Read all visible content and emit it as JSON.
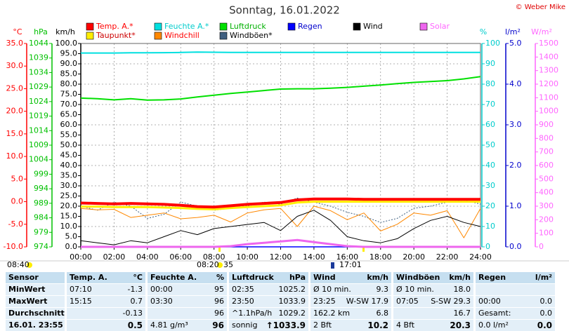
{
  "chart_data": {
    "type": "line",
    "title": "Sonntag, 16.01.2022",
    "copyright": "© Weber Mike",
    "x": [
      0,
      1,
      2,
      3,
      4,
      5,
      6,
      7,
      8,
      9,
      10,
      11,
      12,
      13,
      14,
      15,
      16,
      17,
      18,
      19,
      20,
      21,
      22,
      23,
      24
    ],
    "xlim": [
      0,
      24
    ],
    "xticks": [
      {
        "value": 0,
        "label": "00:00"
      },
      {
        "value": 2,
        "label": "02:00"
      },
      {
        "value": 4,
        "label": "04:00"
      },
      {
        "value": 6,
        "label": "06:00"
      },
      {
        "value": 8,
        "label": "08:00"
      },
      {
        "value": 10,
        "label": "10:00"
      },
      {
        "value": 12,
        "label": "12:00"
      },
      {
        "value": 14,
        "label": "14:00"
      },
      {
        "value": 16,
        "label": "16:00"
      },
      {
        "value": 18,
        "label": "18:00"
      },
      {
        "value": 20,
        "label": "20:00"
      },
      {
        "value": 22,
        "label": "22:00"
      },
      {
        "value": 24,
        "label": "24:00"
      }
    ],
    "grid": true,
    "grid_axis": 3,
    "axes": [
      {
        "title": "°C",
        "color": "#ff0000",
        "lim": [
          -10,
          35
        ],
        "ticks": [
          {
            "value": 35,
            "label": "35.0"
          },
          {
            "value": 30,
            "label": "30.0"
          },
          {
            "value": 25,
            "label": "25.0"
          },
          {
            "value": 20,
            "label": "20.0"
          },
          {
            "value": 15,
            "label": "15.0"
          },
          {
            "value": 10,
            "label": "10.0"
          },
          {
            "value": 5,
            "label": "5.0"
          },
          {
            "value": 0,
            "label": "0.0"
          },
          {
            "value": -5,
            "label": "-5.0"
          },
          {
            "value": -10,
            "label": "-10.0"
          }
        ]
      },
      {
        "title": "hPa",
        "color": "#00c000",
        "lim": [
          974,
          1044
        ],
        "ticks": [
          1044,
          1039,
          1034,
          1029,
          1024,
          1019,
          1014,
          1009,
          1004,
          999,
          994,
          989,
          984,
          979,
          974
        ]
      },
      {
        "title": "km/h",
        "color": "#000000",
        "lim": [
          0,
          100
        ],
        "ticks": [
          {
            "value": 100,
            "label": "100.0"
          },
          {
            "value": 95,
            "label": "95.0"
          },
          {
            "value": 90,
            "label": "90.0"
          },
          {
            "value": 85,
            "label": "85.0"
          },
          {
            "value": 80,
            "label": "80.0"
          },
          {
            "value": 75,
            "label": "75.0"
          },
          {
            "value": 70,
            "label": "70.0"
          },
          {
            "value": 65,
            "label": "65.0"
          },
          {
            "value": 60,
            "label": "60.0"
          },
          {
            "value": 55,
            "label": "55.0"
          },
          {
            "value": 50,
            "label": "50.0"
          },
          {
            "value": 45,
            "label": "45.0"
          },
          {
            "value": 40,
            "label": "40.0"
          },
          {
            "value": 35,
            "label": "35.0"
          },
          {
            "value": 30,
            "label": "30.0"
          },
          {
            "value": 25,
            "label": "25.0"
          },
          {
            "value": 20,
            "label": "20.0"
          },
          {
            "value": 15,
            "label": "15.0"
          },
          {
            "value": 10,
            "label": "10.0"
          },
          {
            "value": 5,
            "label": "5.0"
          },
          {
            "value": 0,
            "label": "0.0"
          }
        ]
      },
      {
        "title": "%",
        "color": "#00cccc",
        "lim": [
          0,
          100
        ],
        "ticks": [
          100,
          90,
          80,
          70,
          60,
          50,
          40,
          30,
          20,
          10,
          0
        ]
      },
      {
        "title": "l/m²",
        "color": "#0000cc",
        "lim": [
          0,
          5
        ],
        "ticks": [
          {
            "value": 5,
            "label": "5.0"
          },
          {
            "value": 4,
            "label": "4.0"
          },
          {
            "value": 3,
            "label": "3.0"
          },
          {
            "value": 2,
            "label": "2.0"
          },
          {
            "value": 1,
            "label": "1.0"
          },
          {
            "value": 0,
            "label": "0.0"
          }
        ]
      },
      {
        "title": "W/m²",
        "color": "#ff66ff",
        "lim": [
          0,
          1500
        ],
        "ticks": [
          1500,
          1400,
          1300,
          1200,
          1100,
          1000,
          900,
          800,
          700,
          600,
          500,
          400,
          300,
          200,
          100,
          0
        ]
      }
    ],
    "series": [
      {
        "name": "Temp. A.*",
        "color": "#ff0000",
        "legend_color": "#ff0000",
        "axis": 0,
        "values": [
          -0.3,
          -0.4,
          -0.5,
          -0.4,
          -0.5,
          -0.6,
          -0.8,
          -1.1,
          -1.2,
          -0.9,
          -0.6,
          -0.4,
          -0.2,
          0.4,
          0.6,
          0.6,
          0.6,
          0.5,
          0.5,
          0.5,
          0.5,
          0.5,
          0.5,
          0.5,
          0.5
        ]
      },
      {
        "name": "Feuchte A.*",
        "color": "#00e0e0",
        "legend_color": "#00cccc",
        "axis": 3,
        "values": [
          95.3,
          95.3,
          95.3,
          95.4,
          95.4,
          95.5,
          95.6,
          95.8,
          95.7,
          95.6,
          95.6,
          95.6,
          95.6,
          95.6,
          95.6,
          95.6,
          95.6,
          95.6,
          95.6,
          95.6,
          95.6,
          95.6,
          95.6,
          95.6,
          95.6
        ]
      },
      {
        "name": "Luftdruck",
        "color": "#00e000",
        "legend_color": "#00b000",
        "axis": 1,
        "values": [
          1025.2,
          1025.0,
          1024.6,
          1025.0,
          1024.5,
          1024.6,
          1024.9,
          1025.6,
          1026.2,
          1026.8,
          1027.3,
          1027.8,
          1028.3,
          1028.4,
          1028.4,
          1028.6,
          1028.9,
          1029.3,
          1029.7,
          1030.2,
          1030.6,
          1030.9,
          1031.2,
          1031.8,
          1032.6
        ]
      },
      {
        "name": "Regen",
        "color": "#0000ff",
        "legend_color": "#0000cc",
        "axis": 4,
        "values": [
          0,
          0,
          0,
          0,
          0,
          0,
          0,
          0,
          0,
          0,
          0,
          0,
          0,
          0,
          0,
          0,
          0,
          0,
          0,
          0,
          0,
          0,
          0,
          0,
          0
        ]
      },
      {
        "name": "Wind",
        "color": "#000000",
        "legend_color": "#000000",
        "axis": 2,
        "values": [
          3,
          2,
          1,
          3,
          2,
          5,
          8,
          6,
          9,
          10,
          11,
          12,
          8,
          15,
          18,
          13,
          5,
          3,
          2,
          4,
          9,
          13,
          15,
          12,
          10
        ]
      },
      {
        "name": "Solar",
        "color": "#ee66ee",
        "legend_color": "#ff66ff",
        "axis": 5,
        "values": [
          0,
          0,
          0,
          0,
          0,
          0,
          0,
          0,
          0,
          5,
          20,
          30,
          40,
          50,
          35,
          20,
          5,
          0,
          0,
          0,
          0,
          0,
          0,
          0,
          0
        ]
      },
      {
        "name": "Taupunkt*",
        "color": "#ffee00",
        "legend_color": "#cc0000",
        "axis": 0,
        "values": [
          -1.1,
          -1.1,
          -1.2,
          -1.2,
          -1.2,
          -1.3,
          -1.4,
          -1.6,
          -1.7,
          -1.4,
          -1.2,
          -1.0,
          -0.8,
          -0.2,
          0.0,
          0.0,
          0.0,
          0.0,
          0.0,
          0.0,
          0.0,
          0.0,
          0.0,
          0.0,
          0.0
        ]
      },
      {
        "name": "Windchill",
        "color": "#ff8800",
        "legend_color": "#ff0000",
        "axis": 0,
        "values": [
          -1.5,
          -1.8,
          -1.7,
          -3.5,
          -3.0,
          -2.5,
          -3.8,
          -3.5,
          -3.0,
          -4.5,
          -2.5,
          -1.8,
          -1.5,
          -5.5,
          -1.0,
          -2.0,
          -4.0,
          -2.5,
          -6.5,
          -5.0,
          -2.5,
          -3.0,
          -2.0,
          -8.0,
          -1.5
        ]
      },
      {
        "name": "Windböen*",
        "color": "#406080",
        "legend_color": "#000000",
        "axis": 2,
        "values": [
          20,
          18,
          22,
          20,
          14,
          16,
          22,
          20,
          18,
          19,
          20,
          22,
          21,
          24,
          22,
          20,
          17,
          15,
          12,
          14,
          19,
          20,
          22,
          23,
          21
        ]
      }
    ],
    "annotations": [
      "08:40",
      "08:20",
      "35",
      "17:01"
    ]
  },
  "table": {
    "header": {
      "label": "Sensor",
      "cells": [
        {
          "left": "Temp. A.",
          "right": "°C"
        },
        {
          "left": "Feuchte A.",
          "right": "%"
        },
        {
          "left": "Luftdruck",
          "right": "hPa"
        },
        {
          "left": "Wind",
          "right": "km/h"
        },
        {
          "left": "Windböen",
          "right": "km/h"
        },
        {
          "left": "Regen",
          "right": "l/m²"
        }
      ]
    },
    "rows": [
      {
        "label": "MinWert",
        "cells": [
          {
            "left": "07:10",
            "right": "-1.3"
          },
          {
            "left": "00:00",
            "right": "95"
          },
          {
            "left": "02:35",
            "right": "1025.2"
          },
          {
            "left": "Ø 10 min.",
            "right": "9.3"
          },
          {
            "left": "Ø 10 min.",
            "right": "18.0"
          },
          {}
        ]
      },
      {
        "label": "MaxWert",
        "cells": [
          {
            "left": "15:15",
            "right": "0.7"
          },
          {
            "left": "03:30",
            "right": "96"
          },
          {
            "left": "23:50",
            "right": "1033.9"
          },
          {
            "left": "23:25",
            "right": "W-SW 17.9"
          },
          {
            "left": "07:05",
            "right": "S-SW 29.3"
          },
          {
            "left": "00:00",
            "right": "0.0"
          }
        ]
      },
      {
        "label": "Durchschnitt",
        "cells": [
          {
            "right": "-0.13"
          },
          {
            "right": "96"
          },
          {
            "left": "^1.1hPa/h",
            "right": "1029.2"
          },
          {
            "left": "162.2 km",
            "right": "6.8"
          },
          {
            "right": "16.7"
          },
          {
            "left": "Gesamt:",
            "right": "0.0"
          }
        ]
      },
      {
        "label": "16.01. 23:55",
        "cells": [
          {
            "right": "0.5"
          },
          {
            "left": "4.81 g/m³",
            "right": "96"
          },
          {
            "left": "sonnig",
            "right": "↑1033.9"
          },
          {
            "left": "2 Bft",
            "right": "10.2"
          },
          {
            "left": "4 Bft",
            "right": "20.3"
          },
          {
            "left": "0.0 l/m²",
            "right": "0.0"
          }
        ]
      }
    ]
  }
}
